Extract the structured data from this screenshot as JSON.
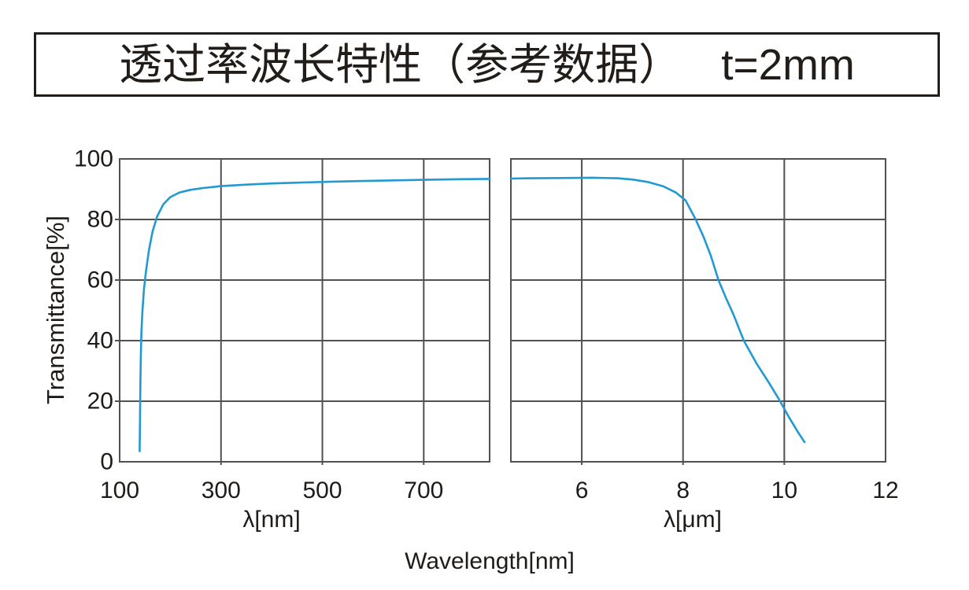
{
  "page": {
    "background": "#ffffff"
  },
  "title": {
    "text": "透过率波长特性（参考数据）",
    "suffix": "t=2mm"
  },
  "colors": {
    "curve": "#2199d2",
    "grid": "#515153",
    "frame": "#515153",
    "text": "#1f1b18"
  },
  "chart_data": {
    "type": "line",
    "title": "透过率波长特性（参考数据） t=2mm",
    "ylabel": "Transmittance[%]",
    "xlabel_overall": "Wavelength[nm]",
    "ylim": [
      0,
      100
    ],
    "y_ticks": [
      0,
      20,
      40,
      60,
      80,
      100
    ],
    "grid": true,
    "legend_position": "none",
    "broken_x_axis": true,
    "panels": [
      {
        "xlabel": "λ[nm]",
        "x_unit": "nm",
        "xlim": [
          100,
          830
        ],
        "x_ticks": [
          100,
          300,
          500,
          700
        ],
        "series": [
          {
            "name": "transmittance",
            "points": [
              [
                139.5,
                3.5
              ],
              [
                140,
                12
              ],
              [
                140.5,
                20
              ],
              [
                141,
                27
              ],
              [
                142,
                36
              ],
              [
                143,
                43
              ],
              [
                145,
                50
              ],
              [
                148,
                57
              ],
              [
                152,
                63
              ],
              [
                158,
                70
              ],
              [
                165,
                76
              ],
              [
                174,
                81
              ],
              [
                186,
                85
              ],
              [
                200,
                87.4
              ],
              [
                218,
                88.9
              ],
              [
                240,
                89.8
              ],
              [
                265,
                90.4
              ],
              [
                300,
                91.0
              ],
              [
                350,
                91.5
              ],
              [
                400,
                91.9
              ],
              [
                460,
                92.2
              ],
              [
                520,
                92.5
              ],
              [
                580,
                92.7
              ],
              [
                640,
                92.9
              ],
              [
                700,
                93.1
              ],
              [
                770,
                93.3
              ],
              [
                830,
                93.4
              ]
            ]
          }
        ]
      },
      {
        "xlabel": "λ[μm]",
        "x_unit": "μm",
        "xlim": [
          4.6,
          12
        ],
        "x_ticks": [
          6,
          8,
          10,
          12
        ],
        "series": [
          {
            "name": "transmittance",
            "points": [
              [
                4.6,
                93.5
              ],
              [
                5.0,
                93.6
              ],
              [
                5.6,
                93.7
              ],
              [
                6.2,
                93.8
              ],
              [
                6.7,
                93.6
              ],
              [
                7.0,
                93.2
              ],
              [
                7.3,
                92.4
              ],
              [
                7.6,
                91.0
              ],
              [
                7.85,
                89.0
              ],
              [
                8.05,
                86.3
              ],
              [
                8.25,
                80.0
              ],
              [
                8.4,
                74.5
              ],
              [
                8.55,
                68.0
              ],
              [
                8.7,
                60.0
              ],
              [
                8.85,
                54.0
              ],
              [
                9.0,
                48.5
              ],
              [
                9.2,
                40.0
              ],
              [
                9.45,
                32.5
              ],
              [
                9.7,
                26.0
              ],
              [
                9.9,
                20.5
              ],
              [
                10.1,
                14.5
              ],
              [
                10.28,
                9.5
              ],
              [
                10.4,
                6.5
              ]
            ]
          }
        ]
      }
    ]
  }
}
